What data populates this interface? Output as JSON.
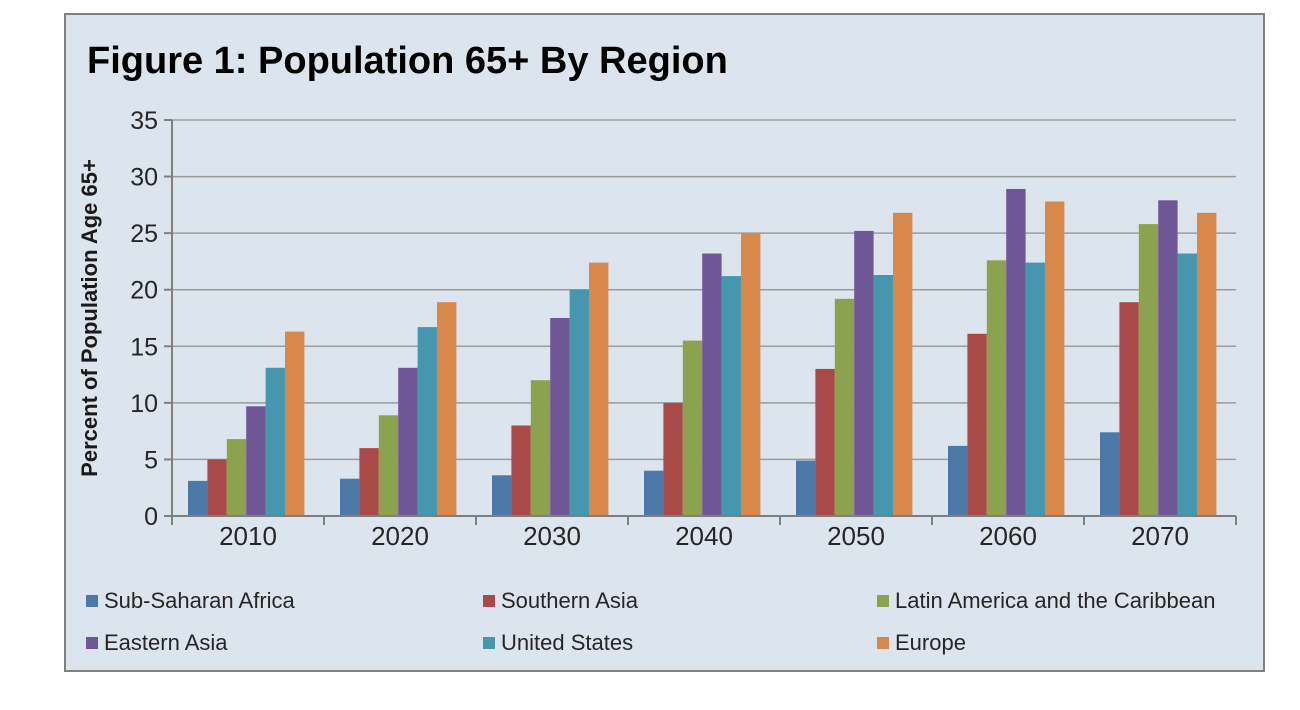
{
  "chart_data": {
    "type": "bar",
    "title": "Figure 1: Population 65+ By Region",
    "xlabel": "",
    "ylabel": "Percent of Population Age 65+",
    "ylim": [
      0,
      35
    ],
    "ytick_step": 5,
    "grid": true,
    "legend_position": "bottom",
    "categories": [
      "2010",
      "2020",
      "2030",
      "2040",
      "2050",
      "2060",
      "2070"
    ],
    "series": [
      {
        "name": "Sub-Saharan Africa",
        "color": "#4c79a8",
        "values": [
          3.1,
          3.3,
          3.6,
          4.0,
          4.9,
          6.2,
          7.4
        ]
      },
      {
        "name": "Southern Asia",
        "color": "#a84a48",
        "values": [
          5.0,
          6.0,
          8.0,
          10.0,
          13.0,
          16.1,
          18.9
        ]
      },
      {
        "name": "Latin America and the Caribbean",
        "color": "#8ca24f",
        "values": [
          6.8,
          8.9,
          12.0,
          15.5,
          19.2,
          22.6,
          25.8
        ]
      },
      {
        "name": "Eastern Asia",
        "color": "#6f5795",
        "values": [
          9.7,
          13.1,
          17.5,
          23.2,
          25.2,
          28.9,
          27.9
        ]
      },
      {
        "name": "United States",
        "color": "#4697ad",
        "values": [
          13.1,
          16.7,
          20.0,
          21.2,
          21.3,
          22.4,
          23.2
        ]
      },
      {
        "name": "Europe",
        "color": "#d8884b",
        "values": [
          16.3,
          18.9,
          22.4,
          25.0,
          26.8,
          27.8,
          26.8
        ]
      }
    ],
    "y_tick_labels": [
      "0",
      "5",
      "10",
      "15",
      "20",
      "25",
      "30",
      "35"
    ]
  },
  "colors": {
    "chart_background": "#dce4ee",
    "page_background": "#ffffff",
    "gridline": "#9b9b9b",
    "axis": "#7f7f7f",
    "label_text": "#262626",
    "title_text": "#000000",
    "border": "#808080"
  }
}
